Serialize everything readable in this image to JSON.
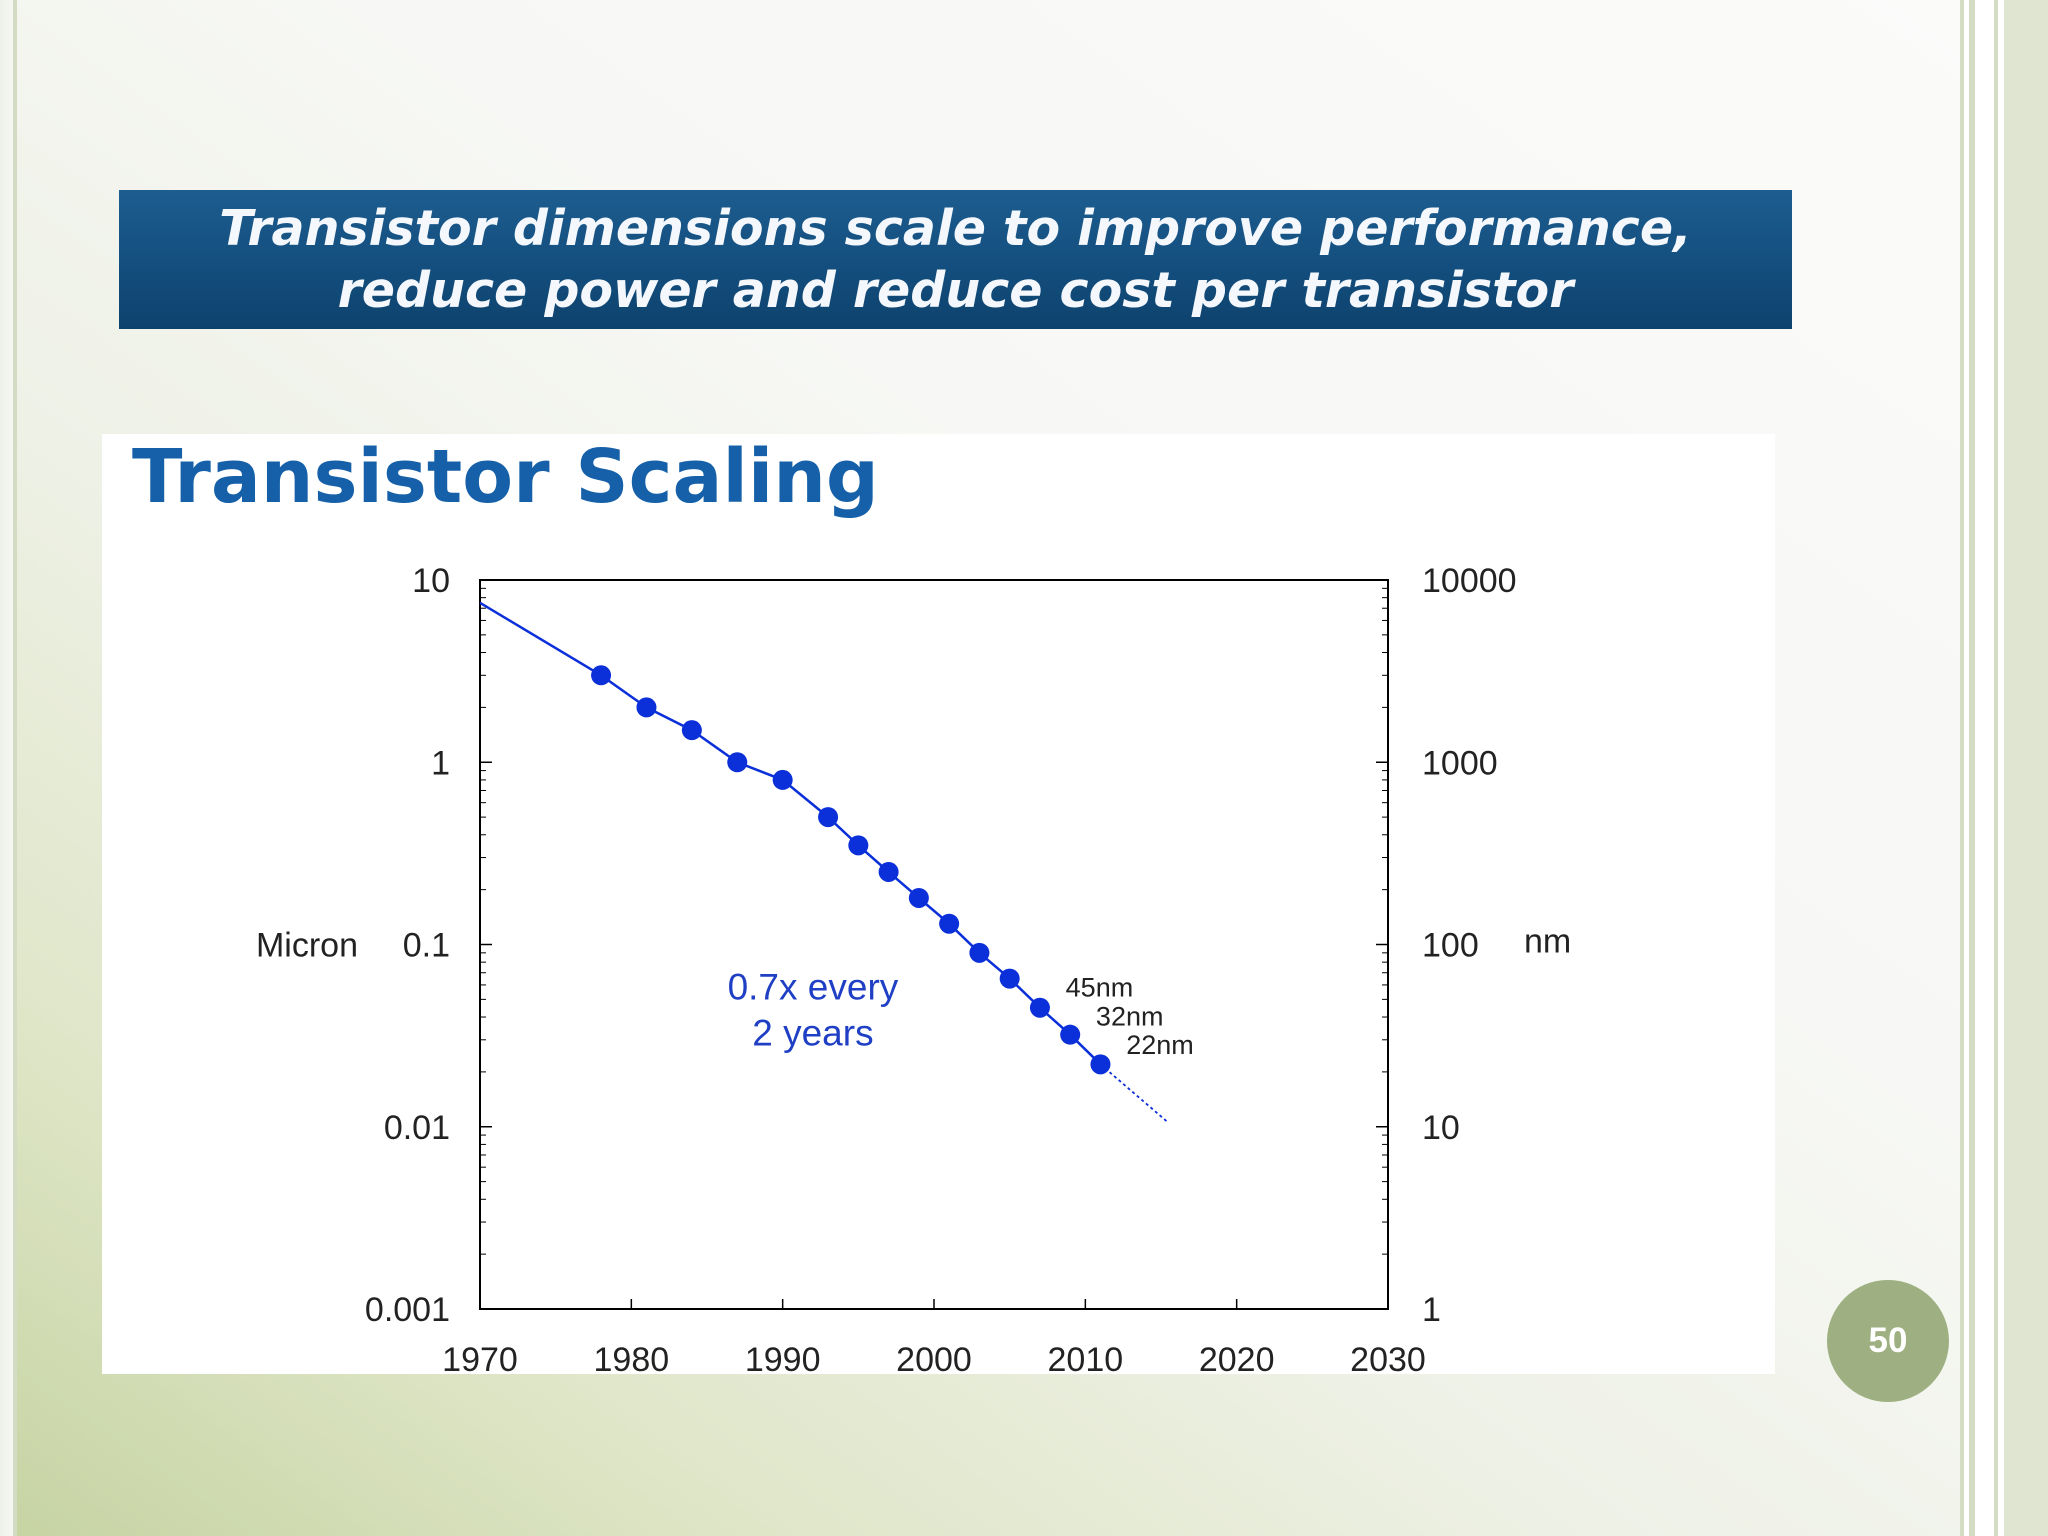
{
  "slide": {
    "banner": {
      "line1": "Transistor dimensions scale to improve performance,",
      "line2": "reduce power and reduce cost per transistor"
    },
    "page_number": "50"
  },
  "chart_data": {
    "type": "scatter",
    "title": "Transistor Scaling",
    "ylabel_left": "Micron",
    "ylabel_right": "nm",
    "xlim": [
      1970,
      2030
    ],
    "ylim": [
      0.001,
      10
    ],
    "yscale": "log",
    "grid": false,
    "x_ticks": [
      1970,
      1980,
      1990,
      2000,
      2010,
      2020,
      2030
    ],
    "y_ticks_left": [
      "10",
      "1",
      "0.1",
      "0.01",
      "0.001"
    ],
    "y_ticks_right": [
      "10000",
      "1000",
      "100",
      "10",
      "1"
    ],
    "series": [
      {
        "color": "#0b2fd9",
        "x": [
          1978,
          1981,
          1984,
          1987,
          1990,
          1993,
          1995,
          1997,
          1999,
          2001,
          2003,
          2005,
          2007,
          2009,
          2011
        ],
        "y": [
          3,
          2,
          1.5,
          1,
          0.8,
          0.5,
          0.35,
          0.25,
          0.18,
          0.13,
          0.09,
          0.065,
          0.045,
          0.032,
          0.022
        ]
      }
    ],
    "trend_line": {
      "x": [
        1970,
        1978,
        1981,
        1984,
        1987,
        1990,
        1993,
        1995,
        1997,
        1999,
        2001,
        2003,
        2005,
        2007,
        2009,
        2011
      ],
      "y": [
        7.5,
        3,
        2,
        1.5,
        1,
        0.8,
        0.5,
        0.35,
        0.25,
        0.18,
        0.13,
        0.09,
        0.065,
        0.045,
        0.032,
        0.022
      ]
    },
    "projection": {
      "x": [
        2011,
        2015.5
      ],
      "y": [
        0.022,
        0.0105
      ]
    },
    "annotations": [
      {
        "text": "0.7x every",
        "x": 1992,
        "y": 0.05
      },
      {
        "text": "2 years",
        "x": 1992,
        "y": 0.028
      },
      {
        "text": "45nm",
        "x": 2008.7,
        "y": 0.052
      },
      {
        "text": "32nm",
        "x": 2010.7,
        "y": 0.036
      },
      {
        "text": "22nm",
        "x": 2012.7,
        "y": 0.025
      }
    ]
  }
}
